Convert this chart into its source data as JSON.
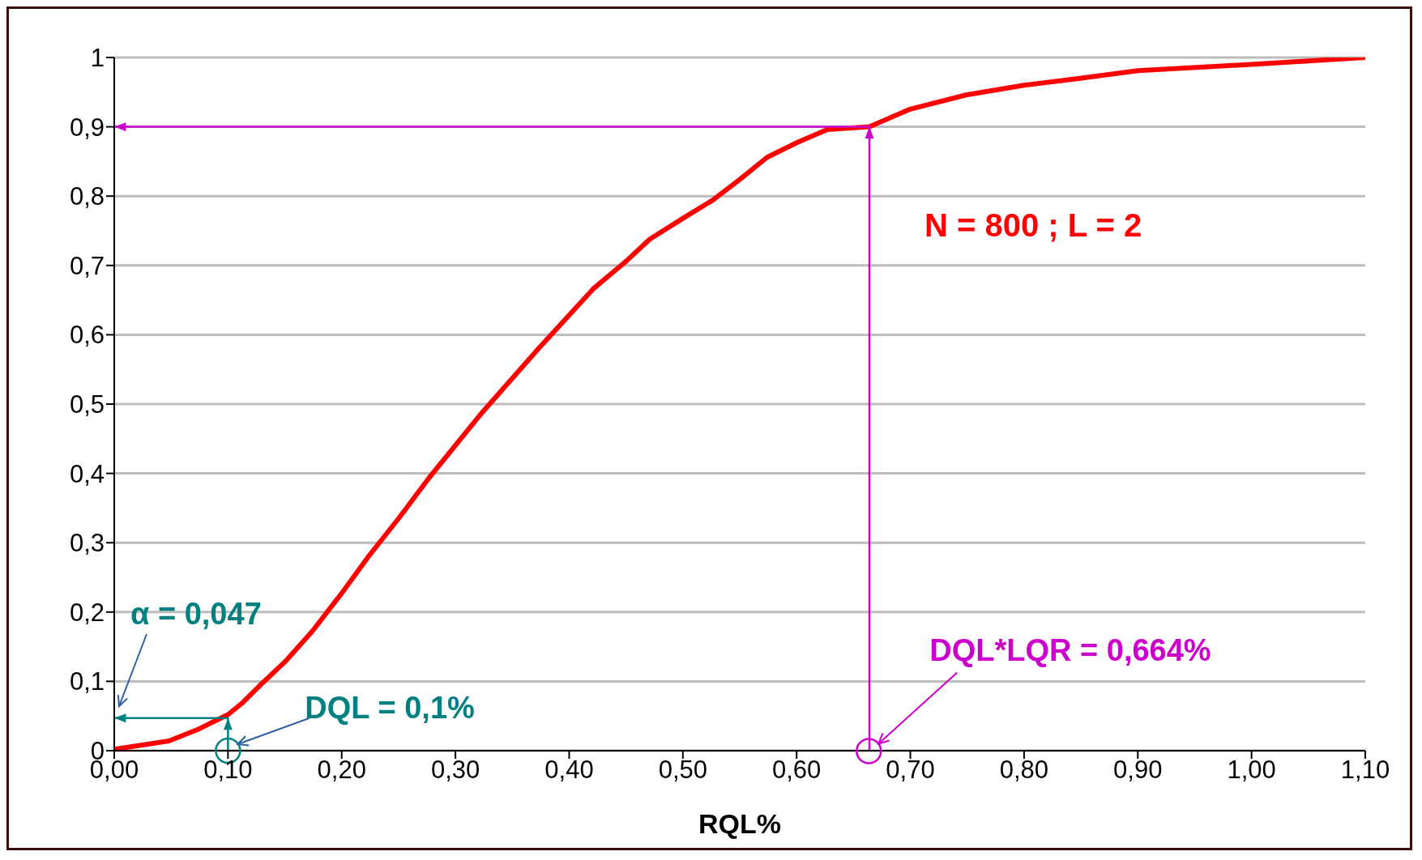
{
  "chart_data": {
    "type": "line",
    "xlabel": "RQL%",
    "xlim": [
      0,
      1.1
    ],
    "xticks": [
      {
        "value": 0,
        "label": "0,00"
      },
      {
        "value": 0.1,
        "label": "0,10"
      },
      {
        "value": 0.2,
        "label": "0,20"
      },
      {
        "value": 0.3,
        "label": "0,30"
      },
      {
        "value": 0.4,
        "label": "0,40"
      },
      {
        "value": 0.5,
        "label": "0,50"
      },
      {
        "value": 0.6,
        "label": "0,60"
      },
      {
        "value": 0.7,
        "label": "0,70"
      },
      {
        "value": 0.8,
        "label": "0,80"
      },
      {
        "value": 0.9,
        "label": "0,90"
      },
      {
        "value": 1.0,
        "label": "1,00"
      },
      {
        "value": 1.1,
        "label": "1,10"
      }
    ],
    "ylim": [
      0,
      1
    ],
    "yticks": [
      0,
      {
        "value": 0.1,
        "label": "0,1"
      },
      {
        "value": 0.2,
        "label": "0,2"
      },
      {
        "value": 0.3,
        "label": "0,3"
      },
      {
        "value": 0.4,
        "label": "0,4"
      },
      {
        "value": 0.5,
        "label": "0,5"
      },
      {
        "value": 0.6,
        "label": "0,6"
      },
      {
        "value": 0.7,
        "label": "0,7"
      },
      {
        "value": 0.8,
        "label": "0,8"
      },
      {
        "value": 0.9,
        "label": "0,9"
      },
      1
    ],
    "grid": "y",
    "marker": "none",
    "line_style": "solid",
    "series": [
      {
        "color": "#ff0000",
        "x": [
          0,
          0.048,
          0.074,
          0.1,
          0.112,
          0.128,
          0.15,
          0.174,
          0.199,
          0.223,
          0.25,
          0.277,
          0.322,
          0.373,
          0.421,
          0.45,
          0.471,
          0.5,
          0.526,
          0.55,
          0.574,
          0.6,
          0.627,
          0.664,
          0.699,
          0.749,
          0.8,
          0.849,
          0.9,
          1.0,
          1.1
        ],
        "values": [
          0.002,
          0.014,
          0.031,
          0.052,
          0.068,
          0.094,
          0.128,
          0.172,
          0.225,
          0.279,
          0.335,
          0.394,
          0.485,
          0.58,
          0.666,
          0.706,
          0.738,
          0.768,
          0.794,
          0.824,
          0.856,
          0.877,
          0.896,
          0.9,
          0.925,
          0.946,
          0.96,
          0.97,
          0.981,
          0.99,
          1.0
        ]
      },
      {
        "color": "#cc00cc",
        "x": [
          0.664,
          0.664,
          0
        ],
        "values": [
          0,
          0.9,
          0.9
        ]
      },
      {
        "color": "#008080",
        "x": [
          0.1,
          0.1,
          0
        ],
        "values": [
          0,
          0.047,
          0.047
        ]
      }
    ],
    "annotations": [
      "α = 0,047",
      {
        "text": "DQL = 0,1%",
        "x": 0.1,
        "y": 0
      },
      {
        "text": "DQL*LQR = 0,664%",
        "x": 0.672,
        "y": 0.01
      },
      "N = 800 ; L = 2"
    ]
  }
}
